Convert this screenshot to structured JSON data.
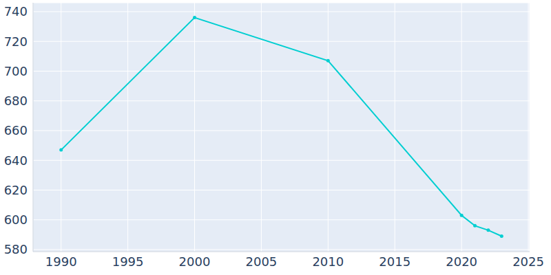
{
  "chart_data": {
    "type": "line",
    "x": [
      1990,
      2000,
      2010,
      2020,
      2021,
      2022,
      2023
    ],
    "values": [
      647,
      736,
      707,
      603,
      596,
      593,
      589
    ],
    "color": "#00ced1",
    "marker": "circle",
    "xlim": [
      1987.9,
      2025.1
    ],
    "xticks": [
      1990,
      1995,
      2000,
      2005,
      2010,
      2015,
      2020,
      2025
    ],
    "ylim": [
      578.6,
      746
    ],
    "yticks": [
      580,
      600,
      620,
      640,
      660,
      680,
      700,
      720,
      740
    ],
    "grid": true
  }
}
